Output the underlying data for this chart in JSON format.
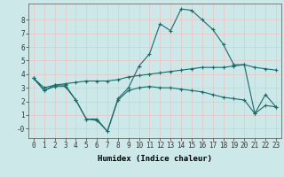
{
  "xlabel": "Humidex (Indice chaleur)",
  "bg_color": "#cce8e8",
  "grid_color": "#e8c8c8",
  "line_color": "#1a6b6b",
  "line1_x": [
    0,
    1,
    2,
    3,
    4,
    5,
    6,
    7,
    8,
    9,
    10,
    11,
    12,
    13,
    14,
    15,
    16,
    17,
    18,
    19,
    20,
    21,
    22,
    23
  ],
  "line1_y": [
    3.7,
    2.8,
    3.2,
    3.2,
    2.1,
    0.7,
    0.7,
    -0.2,
    2.2,
    3.0,
    4.6,
    5.5,
    7.7,
    7.2,
    8.8,
    8.7,
    8.0,
    7.3,
    6.2,
    4.7,
    4.7,
    1.1,
    2.5,
    1.6
  ],
  "line2_x": [
    0,
    1,
    2,
    3,
    4,
    5,
    6,
    7,
    8,
    9,
    10,
    11,
    12,
    13,
    14,
    15,
    16,
    17,
    18,
    19,
    20,
    21,
    22,
    23
  ],
  "line2_y": [
    3.7,
    3.0,
    3.2,
    3.3,
    3.4,
    3.5,
    3.5,
    3.5,
    3.6,
    3.8,
    3.9,
    4.0,
    4.1,
    4.2,
    4.3,
    4.4,
    4.5,
    4.5,
    4.5,
    4.6,
    4.7,
    4.5,
    4.4,
    4.3
  ],
  "line3_x": [
    0,
    1,
    2,
    3,
    4,
    5,
    6,
    7,
    8,
    9,
    10,
    11,
    12,
    13,
    14,
    15,
    16,
    17,
    18,
    19,
    20,
    21,
    22,
    23
  ],
  "line3_y": [
    3.7,
    2.8,
    3.1,
    3.1,
    2.1,
    0.7,
    0.6,
    -0.2,
    2.1,
    2.8,
    3.0,
    3.1,
    3.0,
    3.0,
    2.9,
    2.8,
    2.7,
    2.5,
    2.3,
    2.2,
    2.1,
    1.1,
    1.7,
    1.6
  ],
  "ylim": [
    -0.7,
    9.2
  ],
  "xlim": [
    -0.5,
    23.5
  ],
  "yticks": [
    0,
    1,
    2,
    3,
    4,
    5,
    6,
    7,
    8
  ],
  "ytick_labels": [
    "-0",
    "1",
    "2",
    "3",
    "4",
    "5",
    "6",
    "7",
    "8"
  ],
  "xticks": [
    0,
    1,
    2,
    3,
    4,
    5,
    6,
    7,
    8,
    9,
    10,
    11,
    12,
    13,
    14,
    15,
    16,
    17,
    18,
    19,
    20,
    21,
    22,
    23
  ],
  "tick_fontsize": 5.5,
  "label_fontsize": 6.5
}
